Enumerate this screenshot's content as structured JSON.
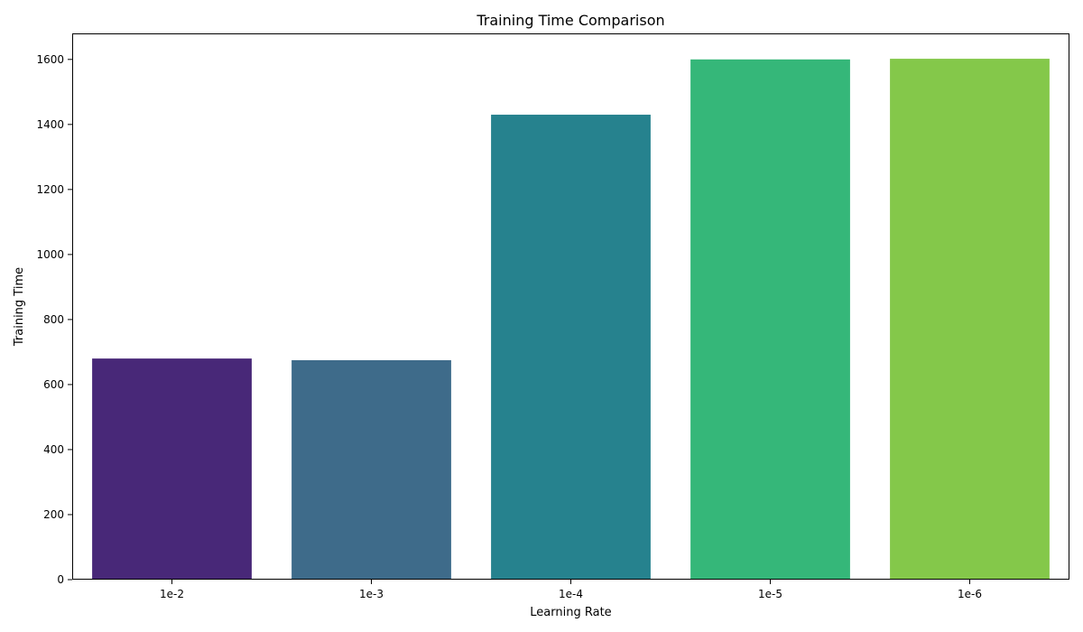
{
  "chart_data": {
    "type": "bar",
    "title": "Training Time Comparison",
    "xlabel": "Learning Rate",
    "ylabel": "Training Time",
    "categories": [
      "1e-2",
      "1e-3",
      "1e-4",
      "1e-5",
      "1e-6"
    ],
    "values": [
      680,
      675,
      1430,
      1600,
      1602
    ],
    "colors": [
      "#482878",
      "#3e6b8a",
      "#26828e",
      "#35b779",
      "#84c84a"
    ],
    "ylim": [
      0,
      1680
    ],
    "yticks": [
      0,
      200,
      400,
      600,
      800,
      1000,
      1200,
      1400,
      1600
    ],
    "grid": false,
    "legend": "none"
  }
}
